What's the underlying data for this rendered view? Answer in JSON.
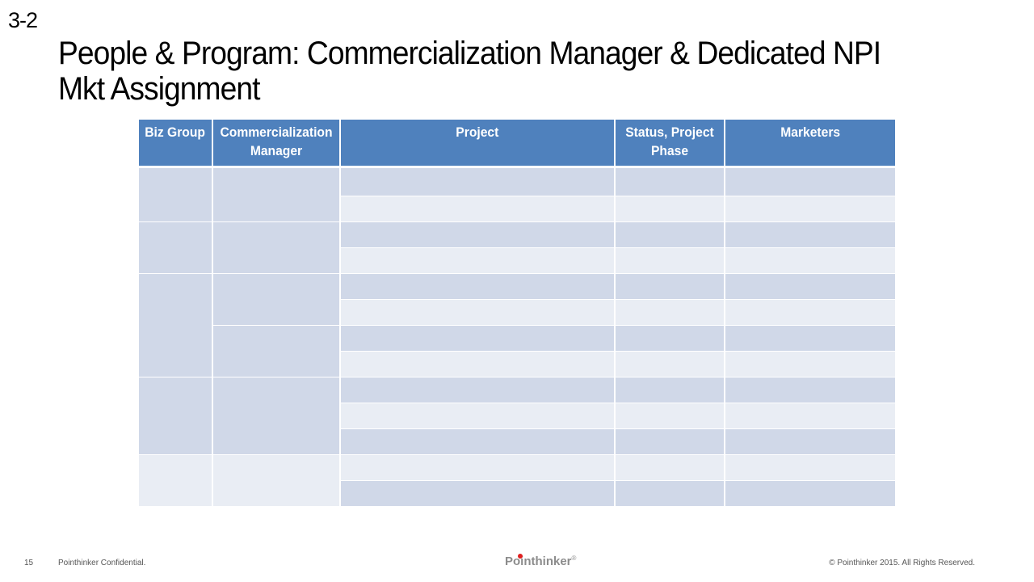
{
  "slide": {
    "tag": "3-2",
    "title": "People & Program: Commercialization Manager & Dedicated NPI Mkt Assignment"
  },
  "table": {
    "headers": [
      "Biz Group",
      "Commercialization Manager",
      "Project",
      "Status, Project Phase",
      "Marketers"
    ]
  },
  "footer": {
    "page_number": "15",
    "confidential": "Pointhinker Confidential.",
    "logo_text": "Pointhinker",
    "logo_mark": "®",
    "copyright": "© Pointhinker   2015. All Rights Reserved."
  },
  "colors": {
    "header_blue": "#4f81bd",
    "row_dark": "#d0d8e8",
    "row_light": "#e9edf4",
    "logo_dot": "#e02020"
  }
}
